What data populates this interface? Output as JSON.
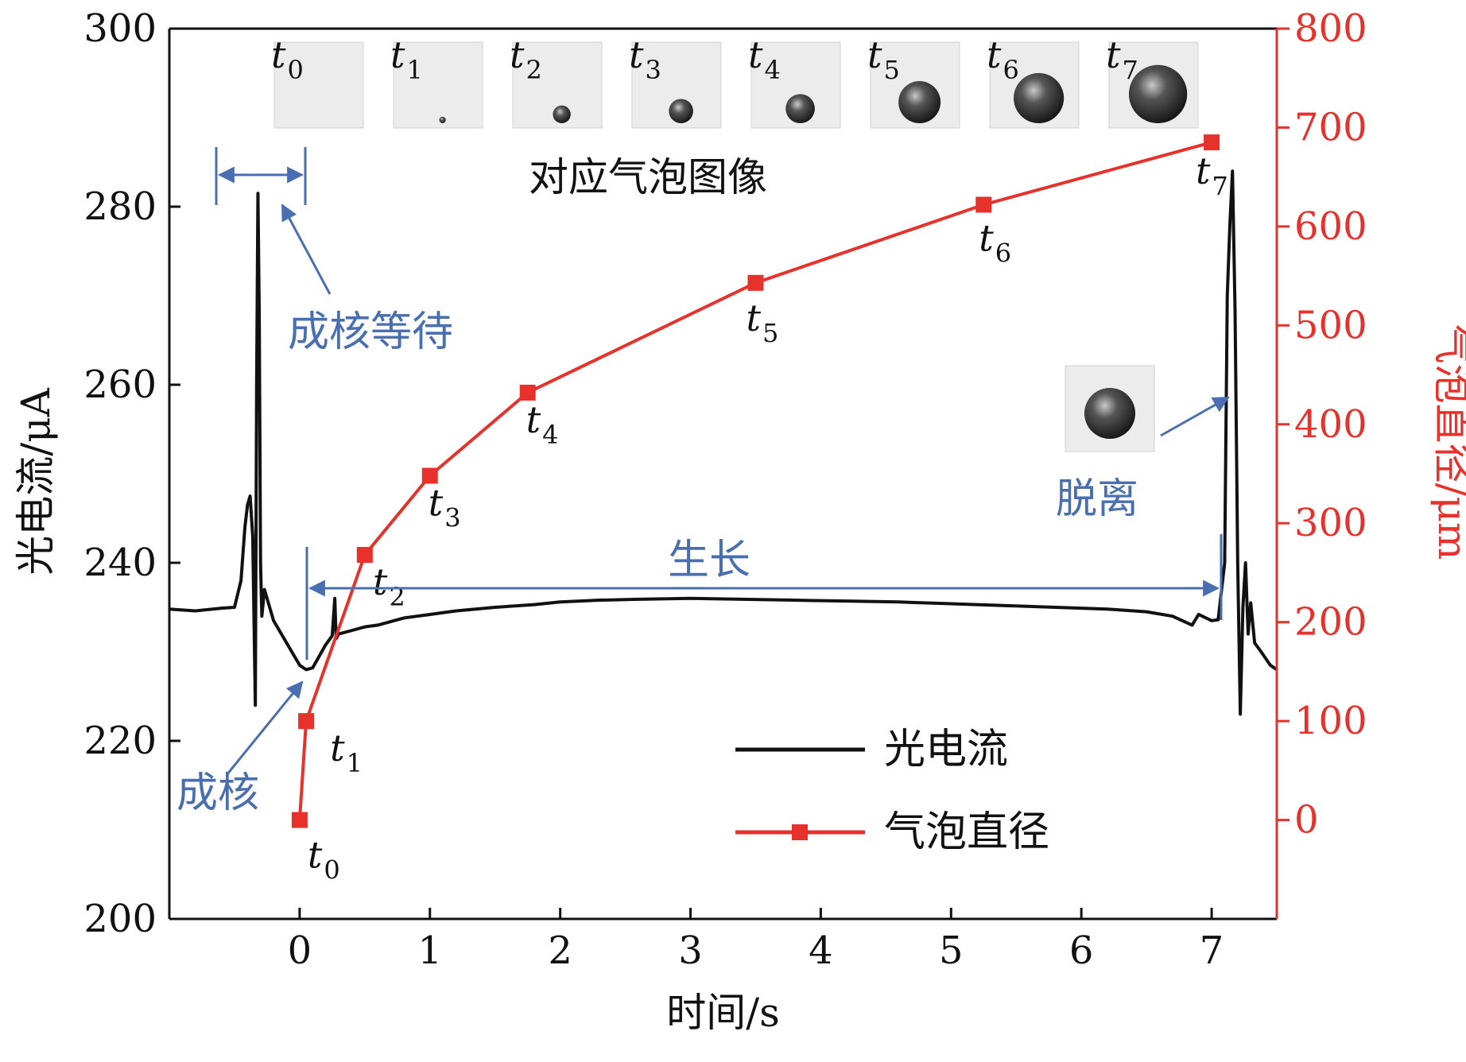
{
  "chart_data": {
    "type": "line",
    "xlabel": "时间/s",
    "ylabel_left": "光电流/μA",
    "ylabel_right": "气泡直径/μm",
    "xlim": [
      -1,
      7.5
    ],
    "ylim_left": [
      200,
      300
    ],
    "ylim_right": [
      -100,
      800
    ],
    "x_ticks": [
      0,
      1,
      2,
      3,
      4,
      5,
      6,
      7
    ],
    "y_left_ticks": [
      200,
      220,
      240,
      260,
      280,
      300
    ],
    "y_right_ticks": [
      0,
      100,
      200,
      300,
      400,
      500,
      600,
      700,
      800
    ],
    "grid": false,
    "legend_position": "bottom-right",
    "series": [
      {
        "name": "光电流",
        "axis": "left",
        "color": "#111111",
        "points": [
          [
            -1.0,
            234.8
          ],
          [
            -0.8,
            234.6
          ],
          [
            -0.6,
            234.9
          ],
          [
            -0.5,
            235.0
          ],
          [
            -0.45,
            238.0
          ],
          [
            -0.42,
            244.0
          ],
          [
            -0.4,
            246.5
          ],
          [
            -0.38,
            247.5
          ],
          [
            -0.36,
            243.0
          ],
          [
            -0.34,
            224.0
          ],
          [
            -0.33,
            260.0
          ],
          [
            -0.32,
            281.5
          ],
          [
            -0.31,
            268.0
          ],
          [
            -0.3,
            240.0
          ],
          [
            -0.29,
            234.0
          ],
          [
            -0.27,
            237.0
          ],
          [
            -0.25,
            236.0
          ],
          [
            -0.2,
            233.5
          ],
          [
            -0.1,
            231.0
          ],
          [
            0.0,
            228.5
          ],
          [
            0.05,
            228.0
          ],
          [
            0.1,
            228.2
          ],
          [
            0.15,
            229.5
          ],
          [
            0.2,
            230.8
          ],
          [
            0.25,
            231.8
          ],
          [
            0.27,
            236.0
          ],
          [
            0.28,
            231.5
          ],
          [
            0.3,
            232.0
          ],
          [
            0.4,
            232.4
          ],
          [
            0.5,
            232.8
          ],
          [
            0.6,
            233.0
          ],
          [
            0.8,
            233.8
          ],
          [
            1.0,
            234.2
          ],
          [
            1.2,
            234.6
          ],
          [
            1.5,
            235.0
          ],
          [
            1.8,
            235.3
          ],
          [
            2.0,
            235.6
          ],
          [
            2.3,
            235.8
          ],
          [
            2.6,
            235.9
          ],
          [
            3.0,
            236.0
          ],
          [
            3.4,
            235.9
          ],
          [
            3.8,
            235.8
          ],
          [
            4.2,
            235.7
          ],
          [
            4.6,
            235.6
          ],
          [
            5.0,
            235.4
          ],
          [
            5.4,
            235.2
          ],
          [
            5.8,
            235.0
          ],
          [
            6.2,
            234.8
          ],
          [
            6.5,
            234.5
          ],
          [
            6.7,
            234.0
          ],
          [
            6.85,
            233.0
          ],
          [
            6.9,
            234.2
          ],
          [
            7.0,
            233.5
          ],
          [
            7.05,
            233.6
          ],
          [
            7.1,
            240.0
          ],
          [
            7.12,
            270.0
          ],
          [
            7.14,
            278.0
          ],
          [
            7.16,
            284.0
          ],
          [
            7.18,
            268.0
          ],
          [
            7.2,
            240.0
          ],
          [
            7.22,
            223.0
          ],
          [
            7.24,
            235.0
          ],
          [
            7.26,
            240.0
          ],
          [
            7.28,
            232.0
          ],
          [
            7.3,
            235.5
          ],
          [
            7.33,
            231.0
          ],
          [
            7.38,
            230.0
          ],
          [
            7.45,
            228.5
          ],
          [
            7.5,
            228.0
          ]
        ]
      },
      {
        "name": "气泡直径",
        "axis": "right",
        "color": "#e8312b",
        "marker": "square",
        "points": [
          [
            0.0,
            0
          ],
          [
            0.05,
            100
          ],
          [
            0.5,
            268
          ],
          [
            1.0,
            348
          ],
          [
            1.75,
            432
          ],
          [
            3.5,
            543
          ],
          [
            5.25,
            622
          ],
          [
            7.0,
            685
          ]
        ]
      }
    ],
    "point_labels": [
      {
        "letter": "t",
        "sub": "0",
        "x": 0.0,
        "y": 0
      },
      {
        "letter": "t",
        "sub": "1",
        "x": 0.05,
        "y": 100
      },
      {
        "letter": "t",
        "sub": "2",
        "x": 0.5,
        "y": 268
      },
      {
        "letter": "t",
        "sub": "3",
        "x": 1.0,
        "y": 348
      },
      {
        "letter": "t",
        "sub": "4",
        "x": 1.75,
        "y": 432
      },
      {
        "letter": "t",
        "sub": "5",
        "x": 3.5,
        "y": 543
      },
      {
        "letter": "t",
        "sub": "6",
        "x": 5.25,
        "y": 622
      },
      {
        "letter": "t",
        "sub": "7",
        "x": 7.0,
        "y": 685
      }
    ],
    "thumbnails": [
      {
        "letter": "t",
        "sub": "0",
        "bubble": 0
      },
      {
        "letter": "t",
        "sub": "1",
        "bubble": 0.08
      },
      {
        "letter": "t",
        "sub": "2",
        "bubble": 0.22
      },
      {
        "letter": "t",
        "sub": "3",
        "bubble": 0.3
      },
      {
        "letter": "t",
        "sub": "4",
        "bubble": 0.36
      },
      {
        "letter": "t",
        "sub": "5",
        "bubble": 0.52
      },
      {
        "letter": "t",
        "sub": "6",
        "bubble": 0.62
      },
      {
        "letter": "t",
        "sub": "7",
        "bubble": 0.72
      }
    ],
    "annotations": {
      "images_caption": "对应气泡图像",
      "nucleation_wait": "成核等待",
      "nucleation": "成核",
      "growth": "生长",
      "detachment": "脱离"
    },
    "legend": [
      "光电流",
      "气泡直径"
    ]
  }
}
